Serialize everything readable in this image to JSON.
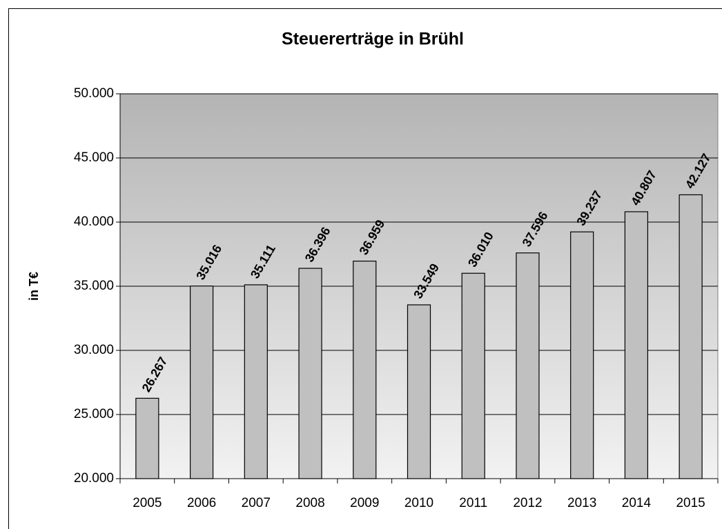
{
  "chart_data": {
    "type": "bar",
    "title": "Steuererträge in Brühl",
    "y_label": "in T€",
    "categories": [
      "2005",
      "2006",
      "2007",
      "2008",
      "2009",
      "2010",
      "2011",
      "2012",
      "2013",
      "2014",
      "2015"
    ],
    "values": [
      26267,
      35016,
      35111,
      36396,
      36959,
      33549,
      36010,
      37596,
      39237,
      40807,
      42127
    ],
    "value_labels": [
      "26.267",
      "35.016",
      "35.111",
      "36.396",
      "36.959",
      "33.549",
      "36.010",
      "37.596",
      "39.237",
      "40.807",
      "42.127"
    ],
    "color": "#c0c0c0",
    "ylim": [
      20000,
      50000
    ],
    "yticks": [
      {
        "value": 20000,
        "label": "20.000"
      },
      {
        "value": 25000,
        "label": "25.000"
      },
      {
        "value": 30000,
        "label": "30.000"
      },
      {
        "value": 35000,
        "label": "35.000"
      },
      {
        "value": 40000,
        "label": "40.000"
      },
      {
        "value": 45000,
        "label": "45.000"
      },
      {
        "value": 50000,
        "label": "50.000"
      }
    ],
    "grid": true
  }
}
